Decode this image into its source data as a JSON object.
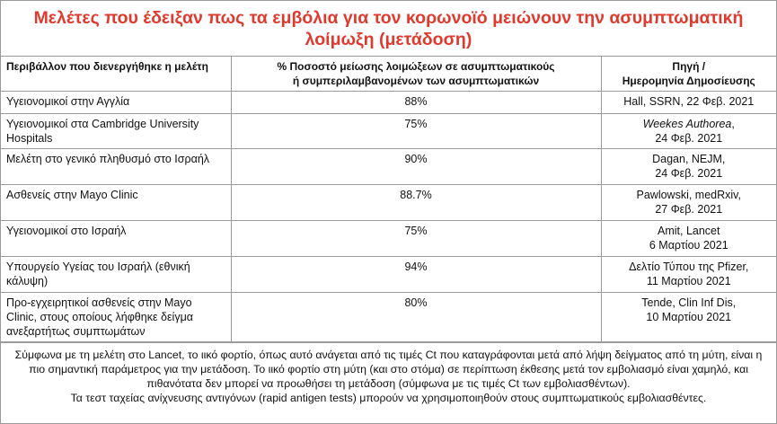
{
  "title": "Μελέτες που έδειξαν πως τα εμβόλια για τον κορωνοϊό μειώνουν την ασυμπτωματική λοίμωξη (μετάδοση)",
  "headers": {
    "setting": "Περιβάλλον που διενεργήθηκε η μελέτη",
    "reduction_line1": "% Ποσοστό μείωσης λοιμώξεων σε ασυμπτωματικούς",
    "reduction_line2": "ή συμπεριλαμβανομένων των ασυμπτωματικών",
    "source_line1": "Πηγή /",
    "source_line2": "Ημερομηνία Δημοσίευσης"
  },
  "rows": [
    {
      "setting": "Υγειονομικοί στην Αγγλία",
      "reduction": "88%",
      "source_line1": "Hall, SSRN, 22 Φεβ. 2021",
      "source_line2": ""
    },
    {
      "setting": "Υγειονομικοί στα Cambridge University Hospitals",
      "reduction": "75%",
      "source_line1": "Weekes Authorea",
      "source_line1_suffix": ",",
      "source_line2": "24 Φεβ. 2021"
    },
    {
      "setting": "Μελέτη στο γενικό πληθυσμό στο Ισραήλ",
      "reduction": "90%",
      "source_line1": "Dagan, NEJM,",
      "source_line2": "24 Φεβ. 2021"
    },
    {
      "setting": "Ασθενείς στην Mayo Clinic",
      "reduction": "88.7%",
      "source_line1": "Pawlowski, medRxiv,",
      "source_line2": "27 Φεβ. 2021"
    },
    {
      "setting": "Υγειονομικοί στο Ισραήλ",
      "reduction": "75%",
      "source_line1": "Amit, Lancet",
      "source_line2": "6 Μαρτίου 2021"
    },
    {
      "setting": "Υπουργείο Υγείας του Ισραήλ (εθνική κάλυψη)",
      "reduction": "94%",
      "source_line1": "Δελτίο Τύπου της Pfizer,",
      "source_line2": "11 Μαρτίου 2021"
    },
    {
      "setting": "Προ-εγχειρητικοί ασθενείς στην Mayo Clinic, στους οποίους λήφθηκε δείγμα ανεξαρτήτως συμπτωμάτων",
      "reduction": "80%",
      "source_line1": "Tende, Clin Inf Dis,",
      "source_line2": "10 Μαρτίου 2021"
    }
  ],
  "footnote": {
    "text1": "Σύμφωνα με τη μελέτη στο Lancet, το ιικό φορτίο, όπως αυτό ανάγεται από τις τιμές Ct που καταγράφονται μετά από λήψη δείγματος από τη μύτη, είναι η πιο σημαντική παράμετρος για την μετάδοση. Το ιικό φορτίο στη μύτη (και στο στόμα) σε περίπτωση έκθεσης μετά τον εμβολιασμό είναι χαμηλό, και πιθανότατα δεν μπορεί να προωθήσει τη μετάδοση (σύμφωνα με τις τιμές Ct των εμβολιασθέντων).",
    "text2": "Τα τεστ ταχείας ανίχνευσης αντιγόνων (rapid antigen tests) μπορούν να χρησιμοποιηθούν στους συμπτωματικούς εμβολιασθέντες."
  },
  "colors": {
    "title": "#e03a2f",
    "border": "#9a9a9a"
  }
}
